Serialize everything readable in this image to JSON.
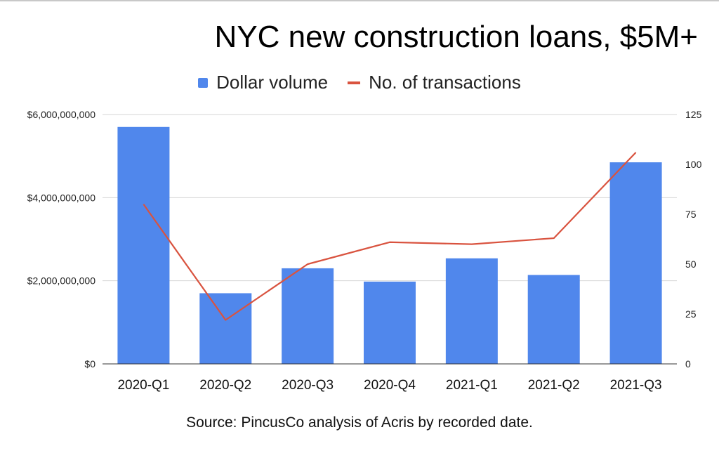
{
  "chart_data": {
    "type": "bar",
    "title": "NYC new construction loans, $5M+",
    "categories": [
      "2020-Q1",
      "2020-Q2",
      "2020-Q3",
      "2020-Q4",
      "2021-Q1",
      "2021-Q2",
      "2021-Q3"
    ],
    "series": [
      {
        "name": "Dollar volume",
        "type": "bar",
        "axis": "left",
        "color": "#5087ec",
        "values": [
          5700000000,
          1700000000,
          2300000000,
          1980000000,
          2540000000,
          2140000000,
          4850000000
        ]
      },
      {
        "name": "No. of transactions",
        "type": "line",
        "axis": "right",
        "color": "#d9533f",
        "values": [
          80,
          22,
          50,
          61,
          60,
          63,
          106
        ]
      }
    ],
    "y_left": {
      "ylim": [
        0,
        6000000000
      ],
      "ticks": [
        0,
        2000000000,
        4000000000,
        6000000000
      ],
      "tick_labels": [
        "$0",
        "$2,000,000,000",
        "$4,000,000,000",
        "$6,000,000,000"
      ]
    },
    "y_right": {
      "ylim": [
        0,
        125
      ],
      "ticks": [
        0,
        25,
        50,
        75,
        100,
        125
      ],
      "tick_labels": [
        "0",
        "25",
        "50",
        "75",
        "100",
        "125"
      ]
    },
    "grid": true,
    "legend": "top"
  },
  "source_note": "Source: PincusCo analysis of Acris by recorded date."
}
